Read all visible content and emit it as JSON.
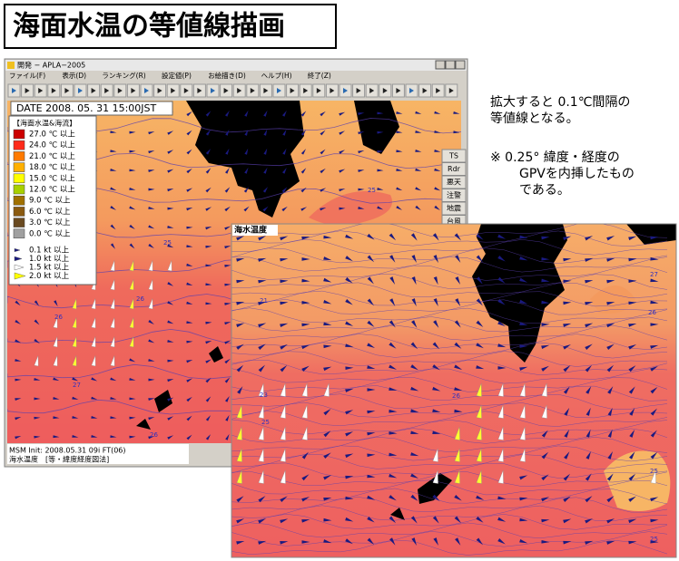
{
  "title": "海面水温の等値線描画",
  "window": {
    "title": "開発 − APLA−2005",
    "menu": [
      "ファイル(F)",
      "表示(D)",
      "ランキング(R)",
      "設定値(P)",
      "お絵描き(D)",
      "ヘルプ(H)",
      "終了(Z)"
    ],
    "date": "DATE 2008. 05. 31  15:00JST",
    "legend": {
      "title": "【海面水温&海流】",
      "temperature": [
        {
          "label": "27.0 ℃ 以上",
          "color": "#cc0000"
        },
        {
          "label": "24.0 ℃ 以上",
          "color": "#ff2a1a"
        },
        {
          "label": "21.0 ℃ 以上",
          "color": "#ff7a00"
        },
        {
          "label": "18.0 ℃ 以上",
          "color": "#ffb000"
        },
        {
          "label": "15.0 ℃ 以上",
          "color": "#ffff00"
        },
        {
          "label": "12.0 ℃ 以上",
          "color": "#a8d000"
        },
        {
          "label": "9.0 ℃ 以上",
          "color": "#a07000"
        },
        {
          "label": "6.0 ℃ 以上",
          "color": "#8a5a10"
        },
        {
          "label": "3.0 ℃ 以上",
          "color": "#6a4a20"
        },
        {
          "label": "0.0 ℃ 以上",
          "color": "#a0a0a0"
        }
      ],
      "current": [
        {
          "label": "0.1 kt 以上",
          "color": "#1a1a80"
        },
        {
          "label": "1.0 kt 以上",
          "color": "#1a1a80"
        },
        {
          "label": "1.5 kt 以上",
          "color": "#ffffff"
        },
        {
          "label": "2.0 kt 以上",
          "color": "#ffff00"
        }
      ]
    },
    "side_buttons": [
      "TS",
      "Rdr",
      "悪天",
      "注警",
      "地震",
      "台風"
    ],
    "status": [
      "MSM Init: 2008.05.31 09i FT(06)",
      "海水温度　[等・緯度経度図法]"
    ],
    "contour_labels": [
      "25",
      "25",
      "26",
      "27",
      "26",
      "26"
    ]
  },
  "inset": {
    "label": "海水温度",
    "contour_labels": [
      "21",
      "23",
      "25",
      "26",
      "27",
      "26",
      "25",
      "25"
    ]
  },
  "notes": [
    [
      "拡大すると 0.1℃間隔の",
      "等値線となる。"
    ],
    [
      "※  0.25° 緯度・経度の",
      "GPVを内挿したもの",
      "である。"
    ]
  ]
}
